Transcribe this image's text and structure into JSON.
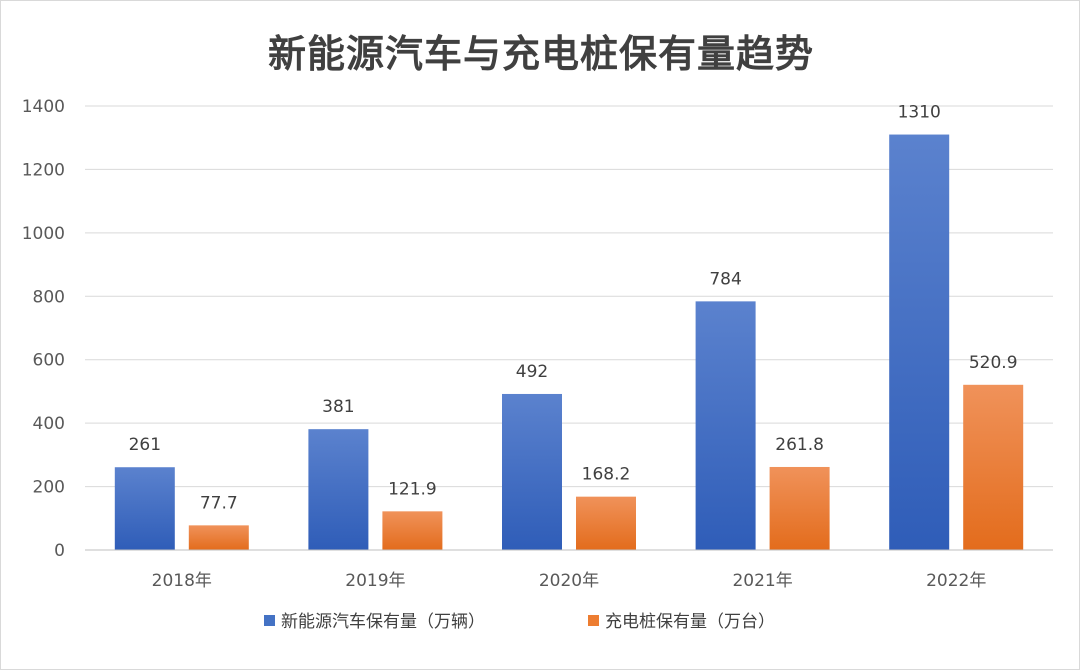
{
  "chart_data": {
    "type": "bar",
    "title": "新能源汽车与充电桩保有量趋势",
    "categories": [
      "2018年",
      "2019年",
      "2020年",
      "2021年",
      "2022年"
    ],
    "series": [
      {
        "name": "新能源汽车保有量（万辆）",
        "values": [
          261,
          381,
          492,
          784,
          1310
        ],
        "labels": [
          "261",
          "381",
          "492",
          "784",
          "1310"
        ],
        "color": "#4472C4"
      },
      {
        "name": "充电桩保有量（万台）",
        "values": [
          77.7,
          121.9,
          168.2,
          261.8,
          520.9
        ],
        "labels": [
          "77.7",
          "121.9",
          "168.2",
          "261.8",
          "520.9"
        ],
        "color": "#ED7D31"
      }
    ],
    "ylim": [
      0,
      1400
    ],
    "yticks": [
      "0",
      "200",
      "400",
      "600",
      "800",
      "1000",
      "1200",
      "1400"
    ],
    "grid": true,
    "legend": "bottom"
  }
}
